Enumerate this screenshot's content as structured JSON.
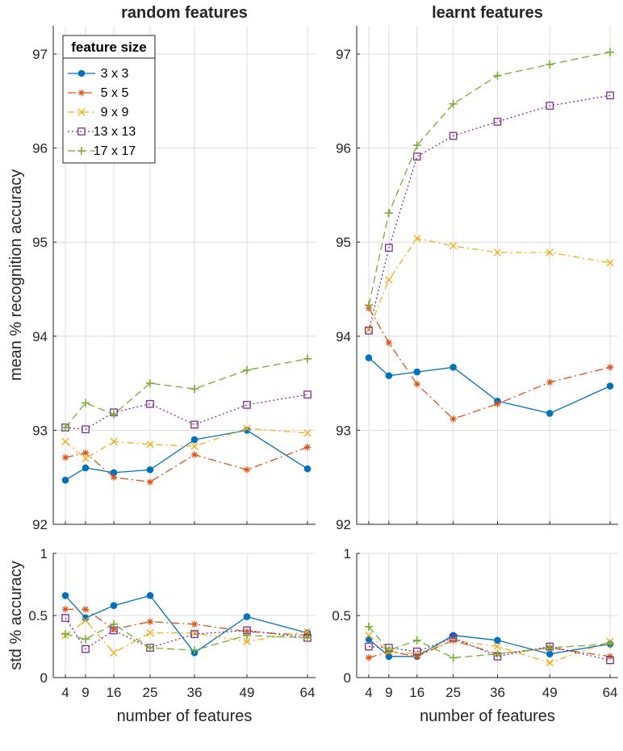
{
  "chart_data": {
    "type": "line",
    "x": [
      4,
      9,
      16,
      25,
      36,
      49,
      64
    ],
    "xlabel": "number of features",
    "legend": {
      "title": "feature size",
      "location": "top-left of first panel",
      "entries": [
        "3 x 3",
        "5 x 5",
        "9 x 9",
        "13 x 13",
        "17 x 17"
      ]
    },
    "series_styles": [
      {
        "name": "3 x 3",
        "color": "#0072BD",
        "marker": "circle",
        "dash": "solid"
      },
      {
        "name": "5 x 5",
        "color": "#D95319",
        "marker": "star",
        "dash": "dashdot-long"
      },
      {
        "name": "9 x 9",
        "color": "#EDB120",
        "marker": "x",
        "dash": "dashdot"
      },
      {
        "name": "13 x 13",
        "color": "#7E2F8E",
        "marker": "square",
        "dash": "dotted"
      },
      {
        "name": "17 x 17",
        "color": "#77AC30",
        "marker": "plus",
        "dash": "dashed"
      }
    ],
    "panels": [
      {
        "id": "mean-random",
        "title": "random features",
        "ylabel": "mean % recognition accuracy",
        "ylim": [
          92,
          97.3
        ],
        "yticks": [
          "92",
          "93",
          "94",
          "95",
          "96",
          "97"
        ],
        "series": [
          {
            "name": "3 x 3",
            "values": [
              92.47,
              92.6,
              92.55,
              92.58,
              92.9,
              93.0,
              92.59
            ]
          },
          {
            "name": "5 x 5",
            "values": [
              92.71,
              92.76,
              92.5,
              92.45,
              92.74,
              92.58,
              92.82
            ]
          },
          {
            "name": "9 x 9",
            "values": [
              92.88,
              92.7,
              92.88,
              92.85,
              92.83,
              93.02,
              92.97
            ]
          },
          {
            "name": "13 x 13",
            "values": [
              93.03,
              93.01,
              93.19,
              93.28,
              93.06,
              93.27,
              93.38
            ]
          },
          {
            "name": "17 x 17",
            "values": [
              93.03,
              93.29,
              93.17,
              93.5,
              93.44,
              93.64,
              93.76
            ]
          }
        ]
      },
      {
        "id": "mean-learnt",
        "title": "learnt features",
        "ylabel": "",
        "ylim": [
          92,
          97.3
        ],
        "yticks": [
          "92",
          "93",
          "94",
          "95",
          "96",
          "97"
        ],
        "series": [
          {
            "name": "3 x 3",
            "values": [
              93.77,
              93.58,
              93.62,
              93.67,
              93.31,
              93.18,
              93.47
            ]
          },
          {
            "name": "5 x 5",
            "values": [
              94.3,
              93.93,
              93.49,
              93.12,
              93.28,
              93.51,
              93.67
            ]
          },
          {
            "name": "9 x 9",
            "values": [
              94.07,
              94.6,
              95.04,
              94.96,
              94.89,
              94.89,
              94.78
            ]
          },
          {
            "name": "13 x 13",
            "values": [
              94.06,
              94.94,
              95.91,
              96.13,
              96.28,
              96.45,
              96.56
            ]
          },
          {
            "name": "17 x 17",
            "values": [
              94.33,
              95.31,
              96.03,
              96.47,
              96.77,
              96.89,
              97.02
            ]
          }
        ]
      },
      {
        "id": "std-random",
        "title": "",
        "ylabel": "std % accuracy",
        "ylim": [
          0,
          1
        ],
        "yticks": [
          "0",
          "0.5",
          "1"
        ],
        "series": [
          {
            "name": "3 x 3",
            "values": [
              0.66,
              0.48,
              0.58,
              0.66,
              0.2,
              0.49,
              0.36
            ]
          },
          {
            "name": "5 x 5",
            "values": [
              0.55,
              0.55,
              0.39,
              0.45,
              0.43,
              0.37,
              0.34
            ]
          },
          {
            "name": "9 x 9",
            "values": [
              0.34,
              0.46,
              0.2,
              0.36,
              0.36,
              0.29,
              0.37
            ]
          },
          {
            "name": "13 x 13",
            "values": [
              0.48,
              0.23,
              0.38,
              0.24,
              0.35,
              0.38,
              0.32
            ]
          },
          {
            "name": "17 x 17",
            "values": [
              0.35,
              0.31,
              0.43,
              0.24,
              0.22,
              0.34,
              0.32
            ]
          }
        ]
      },
      {
        "id": "std-learnt",
        "title": "",
        "ylabel": "",
        "ylim": [
          0,
          1
        ],
        "yticks": [
          "0",
          "0.5",
          "1"
        ],
        "series": [
          {
            "name": "3 x 3",
            "values": [
              0.31,
              0.17,
              0.17,
              0.34,
              0.3,
              0.19,
              0.27
            ]
          },
          {
            "name": "5 x 5",
            "values": [
              0.16,
              0.21,
              0.17,
              0.3,
              0.19,
              0.24,
              0.17
            ]
          },
          {
            "name": "9 x 9",
            "values": [
              0.34,
              0.21,
              0.19,
              0.3,
              0.25,
              0.12,
              0.29
            ]
          },
          {
            "name": "13 x 13",
            "values": [
              0.25,
              0.24,
              0.21,
              0.32,
              0.17,
              0.25,
              0.14
            ]
          },
          {
            "name": "17 x 17",
            "values": [
              0.41,
              0.22,
              0.3,
              0.16,
              0.19,
              0.24,
              0.27
            ]
          }
        ]
      }
    ]
  }
}
